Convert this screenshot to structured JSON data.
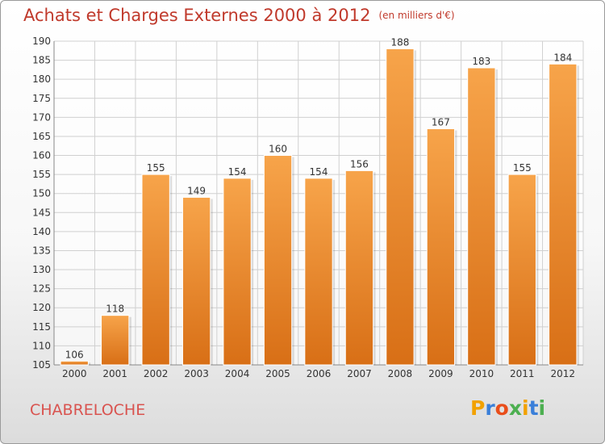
{
  "header": {
    "title": "Achats et Charges Externes 2000 à 2012",
    "unit": "(en milliers d'€)"
  },
  "footer": {
    "city": "CHABRELOCHE",
    "logo_letters": [
      "P",
      "r",
      "o",
      "x",
      "i",
      "t",
      "i"
    ]
  },
  "colors": {
    "title": "#c0392b",
    "bar_top": "#f7a44a",
    "bar_bottom": "#d86f16",
    "logo": [
      "#f2a100",
      "#3a7fd9",
      "#e94e1b",
      "#4caf50",
      "#f2a100",
      "#3a7fd9",
      "#4caf50"
    ]
  },
  "chart_data": {
    "type": "bar",
    "categories": [
      "2000",
      "2001",
      "2002",
      "2003",
      "2004",
      "2005",
      "2006",
      "2007",
      "2008",
      "2009",
      "2010",
      "2011",
      "2012"
    ],
    "values": [
      106,
      118,
      155,
      149,
      154,
      160,
      154,
      156,
      188,
      167,
      183,
      155,
      184
    ],
    "title": "Achats et Charges Externes 2000 à 2012",
    "ylim": [
      105,
      190
    ],
    "yticks": [
      105,
      110,
      115,
      120,
      125,
      130,
      135,
      140,
      145,
      150,
      155,
      160,
      165,
      170,
      175,
      180,
      185,
      190
    ],
    "grid": true,
    "data_labels": true
  }
}
